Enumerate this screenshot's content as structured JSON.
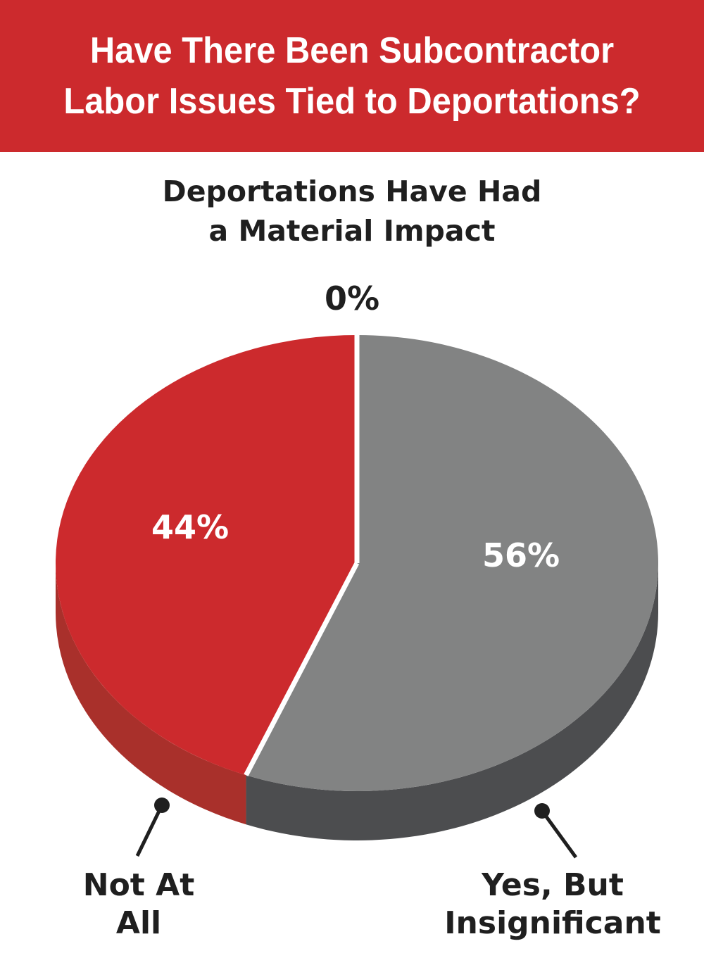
{
  "header": {
    "title_line1": "Have There Been Subcontractor",
    "title_line2": "Labor Issues Tied to Deportations?"
  },
  "chart_data": {
    "type": "pie",
    "title": "Have There Been Subcontractor Labor Issues Tied to Deportations?",
    "subtitle_line1": "Deportations Have Had",
    "subtitle_line2": "a Material Impact",
    "slices": [
      {
        "name": "Deportations Have Had a Material Impact",
        "value": 0,
        "label": "0%",
        "color": "#cc2a2d"
      },
      {
        "name": "Yes, But Insignificant",
        "value": 56,
        "label": "56%",
        "color": "#828383",
        "side_color": "#4c4d4f",
        "callout_line1": "Yes, But",
        "callout_line2": "Insignificant"
      },
      {
        "name": "Not At All",
        "value": 44,
        "label": "44%",
        "color": "#cc2a2d",
        "side_color": "#a9302b",
        "callout_line1": "Not At",
        "callout_line2": "All"
      }
    ],
    "colors": {
      "banner": "#cc2a2d",
      "red_top": "#cc2a2d",
      "red_side": "#a9302b",
      "gray_top": "#828383",
      "gray_side": "#4c4d4f",
      "text_dark": "#1f1f1f"
    }
  }
}
